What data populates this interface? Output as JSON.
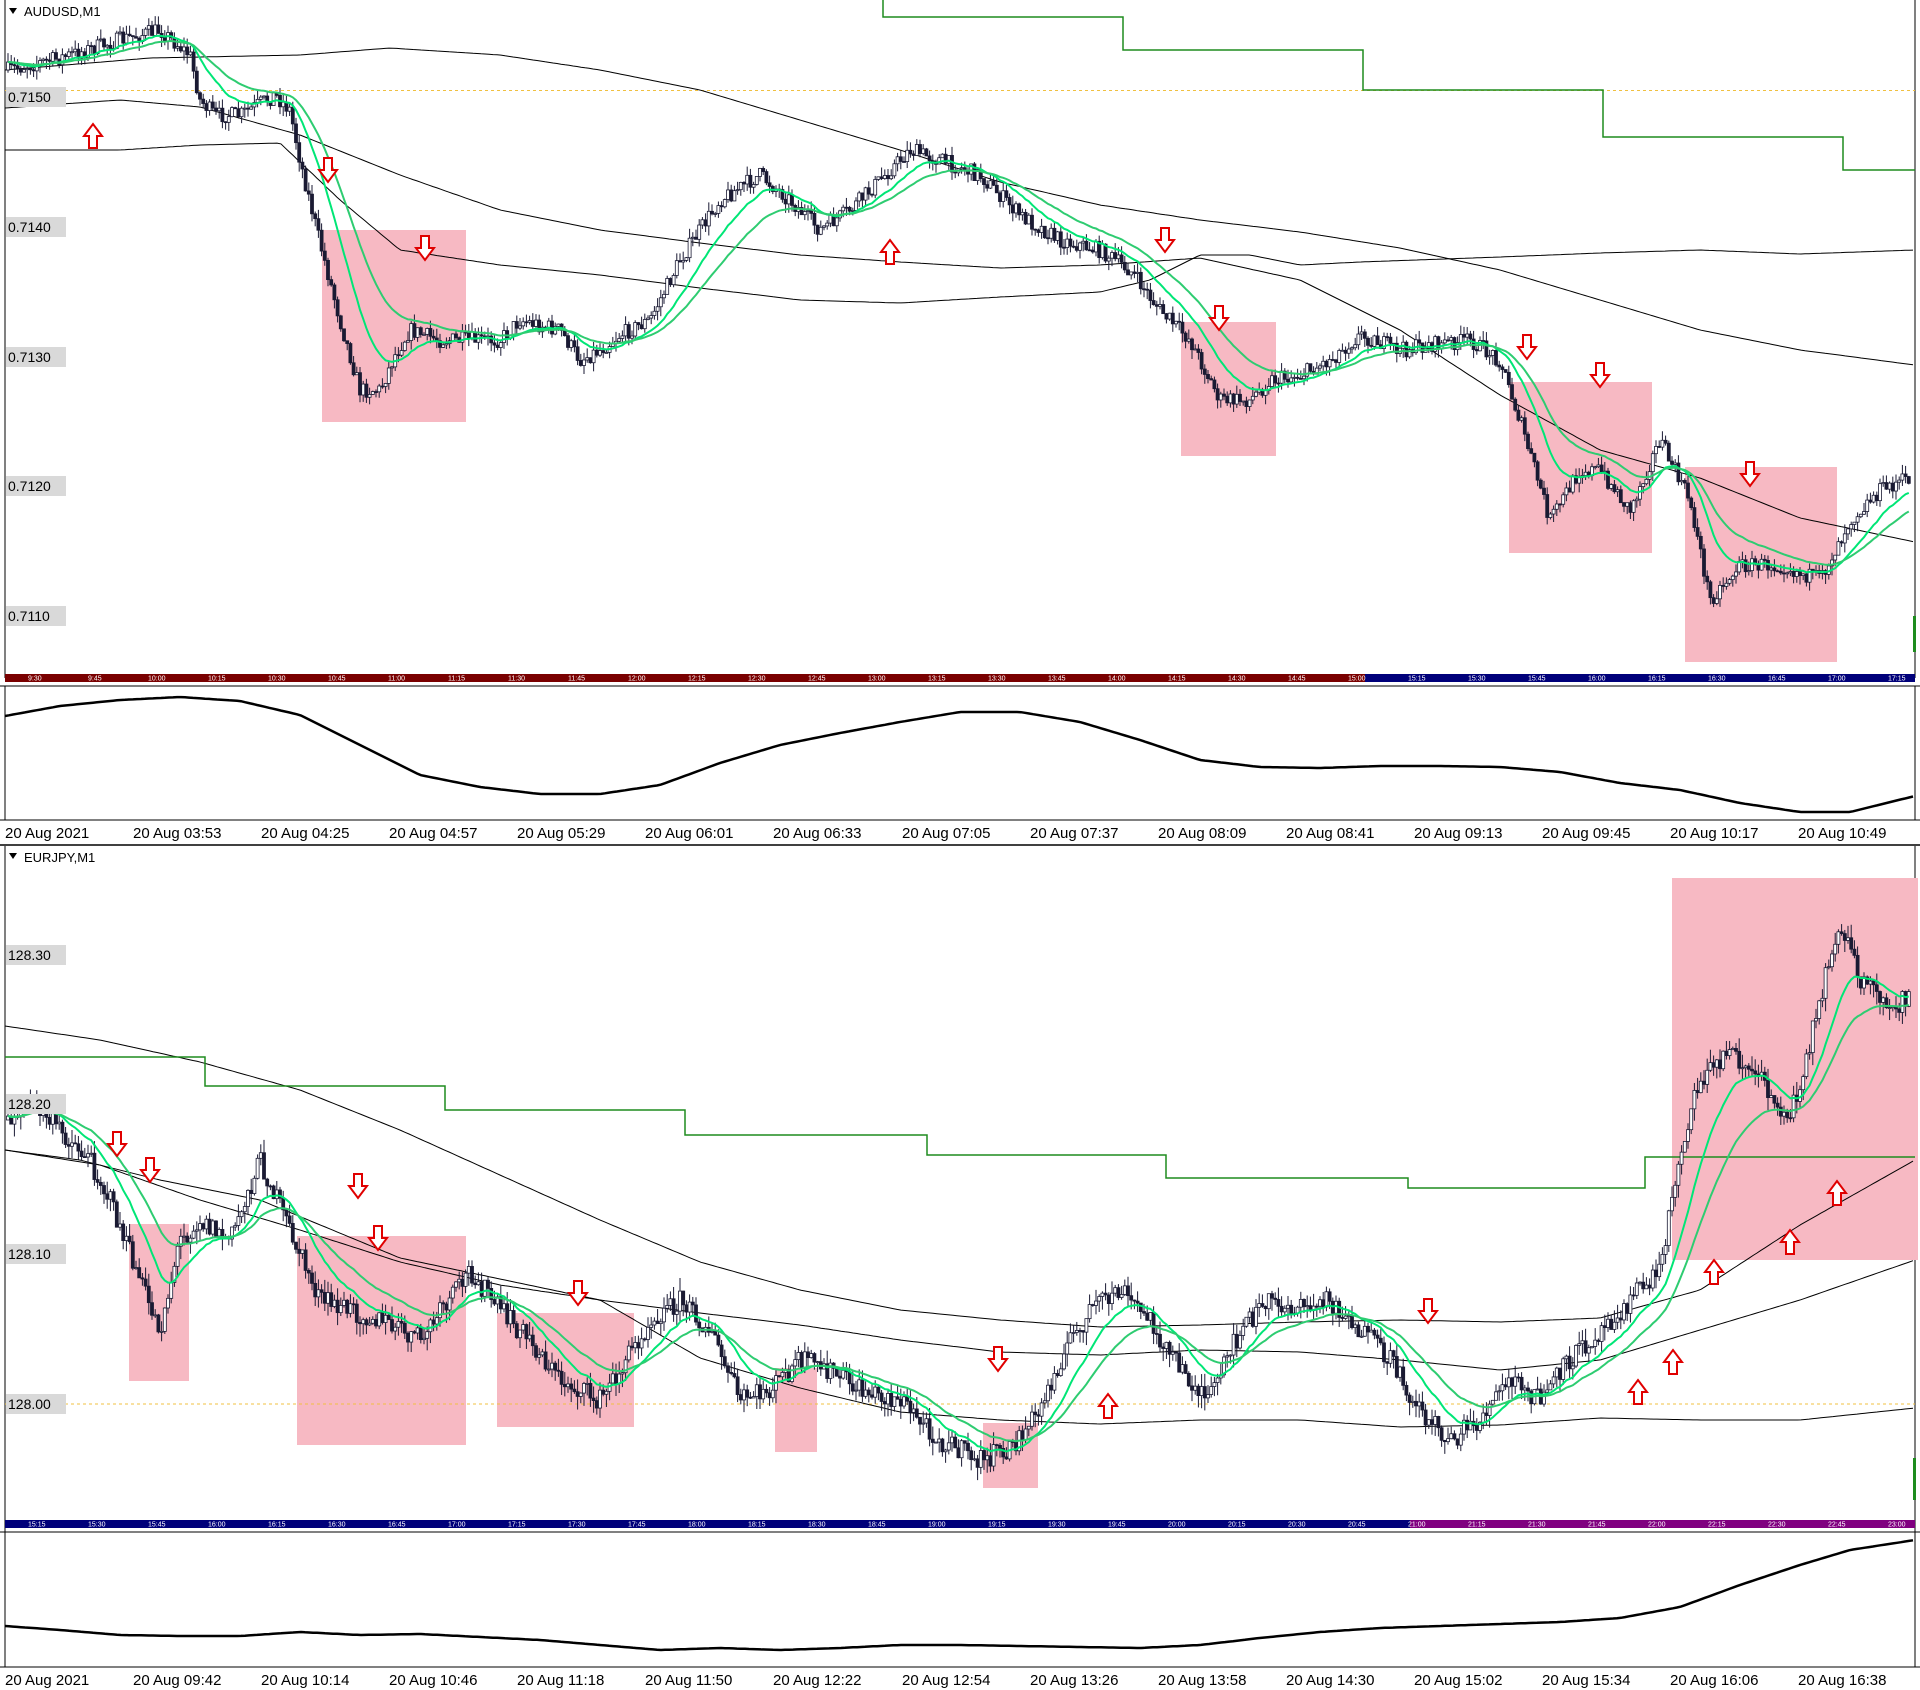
{
  "colors": {
    "candle": "#1a1a33",
    "ma_fast": "#00e676",
    "ma_slow": "#2ecc71",
    "envelope": "#000000",
    "stop_line": "#1e8c1e",
    "zone_fill": "#f7b9c3",
    "arrow": "#e00000",
    "label_bg": "#d9d9d9",
    "session_red": "#7a0000",
    "session_blue": "#00007a",
    "session_purple": "#800080",
    "oscillator": "#000000",
    "ref_line": "#f0c040"
  },
  "panels": [
    {
      "id": "audusd",
      "symbol_label": "AUDUSD,M1",
      "price_labels": [
        "0.7150",
        "0.7140",
        "0.7130",
        "0.7120",
        "0.7110"
      ],
      "price_levels": [
        0.715,
        0.714,
        0.713,
        0.712,
        0.711
      ],
      "reference_level": 0.71505,
      "session_ticks": [
        "9:30",
        "9:45",
        "10:00",
        "10:15",
        "10:30",
        "10:45",
        "11:00",
        "11:15",
        "11:30",
        "11:45",
        "12:00",
        "12:15",
        "12:30",
        "12:45",
        "13:00",
        "13:15",
        "13:30",
        "13:45",
        "14:00",
        "14:15",
        "14:30",
        "14:45",
        "15:00",
        "15:15",
        "15:30",
        "15:45",
        "16:00",
        "16:15",
        "16:30",
        "16:45",
        "17:00",
        "17:15"
      ],
      "time_labels": [
        "20 Aug 2021",
        "20 Aug 03:53",
        "20 Aug 04:25",
        "20 Aug 04:57",
        "20 Aug 05:29",
        "20 Aug 06:01",
        "20 Aug 06:33",
        "20 Aug 07:05",
        "20 Aug 07:37",
        "20 Aug 08:09",
        "20 Aug 08:41",
        "20 Aug 09:13",
        "20 Aug 09:45",
        "20 Aug 10:17",
        "20 Aug 10:49"
      ]
    },
    {
      "id": "eurjpy",
      "symbol_label": "EURJPY,M1",
      "price_labels": [
        "128.30",
        "128.20",
        "128.10",
        "128.00"
      ],
      "price_levels": [
        128.3,
        128.2,
        128.1,
        128.0
      ],
      "reference_level": 128.0,
      "session_ticks": [
        "15:15",
        "15:30",
        "15:45",
        "16:00",
        "16:15",
        "16:30",
        "16:45",
        "17:00",
        "17:15",
        "17:30",
        "17:45",
        "18:00",
        "18:15",
        "18:30",
        "18:45",
        "19:00",
        "19:15",
        "19:30",
        "19:45",
        "20:00",
        "20:15",
        "20:30",
        "20:45",
        "21:00",
        "21:15",
        "21:30",
        "21:45",
        "22:00",
        "22:15",
        "22:30",
        "22:45",
        "23:00"
      ],
      "time_labels": [
        "20 Aug 2021",
        "20 Aug 09:42",
        "20 Aug 10:14",
        "20 Aug 10:46",
        "20 Aug 11:18",
        "20 Aug 11:50",
        "20 Aug 12:22",
        "20 Aug 12:54",
        "20 Aug 13:26",
        "20 Aug 13:58",
        "20 Aug 14:30",
        "20 Aug 15:02",
        "20 Aug 15:34",
        "20 Aug 16:06",
        "20 Aug 16:38"
      ]
    }
  ]
}
